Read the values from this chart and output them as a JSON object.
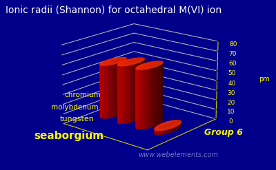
{
  "title": "Ionic radii (Shannon) for octahedral M(VI) ion",
  "elements": [
    "chromium",
    "molybdenum",
    "tungsten",
    "seaborgium"
  ],
  "values": [
    55,
    59,
    60,
    4
  ],
  "ylabel": "pm",
  "ylim": [
    0,
    80
  ],
  "yticks": [
    0,
    10,
    20,
    30,
    40,
    50,
    60,
    70,
    80
  ],
  "bar_color_side": "#cc0000",
  "bar_color_top": "#ff3300",
  "bar_color_bottom": "#880000",
  "background_color": "#00008B",
  "grid_color": "#cccc00",
  "label_color": "#ffff00",
  "title_color": "#ffffff",
  "watermark": "www.webelements.com",
  "group_label": "Group 6",
  "title_fontsize": 10,
  "label_fontsize": 7,
  "tick_fontsize": 6.5,
  "elev": 18,
  "azim": -50
}
